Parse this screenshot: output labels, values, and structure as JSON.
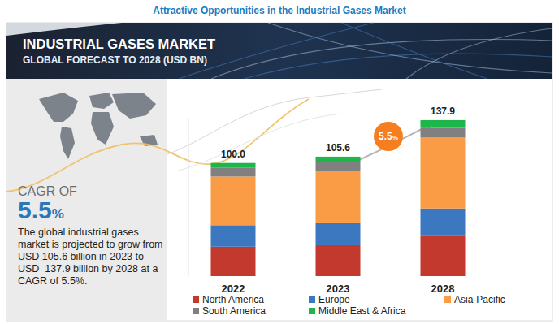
{
  "chart_data": {
    "type": "bar",
    "stacked": true,
    "page_title": "Attractive Opportunities in the Industrial Gases Market",
    "title": "INDUSTRIAL GASES MARKET",
    "subtitle": "GLOBAL FORECAST TO 2028 (USD BN)",
    "categories": [
      "2022",
      "2023",
      "2028"
    ],
    "series": [
      {
        "name": "North America",
        "color": "#c4392e",
        "values": [
          26,
          27.3,
          35.3
        ]
      },
      {
        "name": "Europe",
        "color": "#3c78bf",
        "values": [
          19,
          19.4,
          24.5
        ]
      },
      {
        "name": "Asia-Pacific",
        "color": "#f99c45",
        "values": [
          43,
          46,
          62.6
        ]
      },
      {
        "name": "South America",
        "color": "#808080",
        "values": [
          8,
          8,
          8.6
        ]
      },
      {
        "name": "Middle East & Africa",
        "color": "#1db64a",
        "values": [
          4,
          4.9,
          6.9
        ]
      }
    ],
    "totals": [
      100,
      105.6,
      137.9
    ],
    "total_labels": [
      "100.0",
      "105.6",
      "137.9"
    ],
    "cagr": 5.5,
    "cagr_label": "5.5%",
    "cagr_caption": "CAGR OF",
    "description": "The global industrial gases market is projected to grow from USD 105.6 billion in 2023 to USD  137.9 billion by 2028 at a CAGR of 5.5%.",
    "ylim": [
      0,
      140
    ],
    "yticks": [],
    "tick_labels": false,
    "legend": "bottom",
    "data_labels": false
  }
}
